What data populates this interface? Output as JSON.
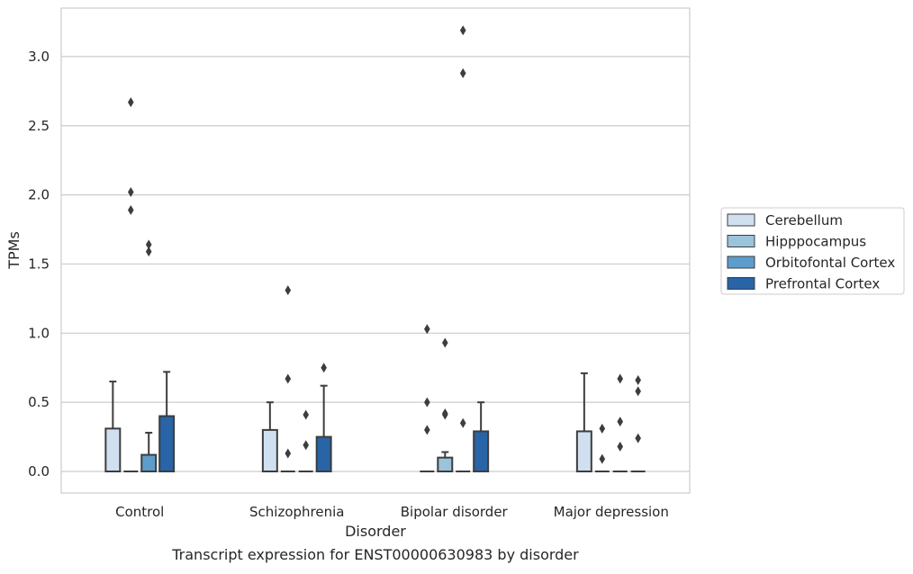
{
  "chart_data": {
    "type": "boxplot",
    "title": "",
    "caption": "Transcript expression for ENST00000630983 by disorder",
    "xlabel": "Disorder",
    "ylabel": "TPMs",
    "ylim": [
      -0.15,
      3.38
    ],
    "yticks": [
      0.0,
      0.5,
      1.0,
      1.5,
      2.0,
      2.5,
      3.0
    ],
    "ytick_labels": [
      "0.0",
      "0.5",
      "1.0",
      "1.5",
      "2.0",
      "2.5",
      "3.0"
    ],
    "grid": "horizontal",
    "legend_position": "right",
    "categories": [
      "Control",
      "Schizophrenia",
      "Bipolar disorder",
      "Major depression"
    ],
    "series": [
      {
        "name": "Cerebellum",
        "color": "#d1e0f0",
        "boxes": [
          {
            "q1": 0.0,
            "median": 0.0,
            "q3": 0.31,
            "whisker_low": 0.0,
            "whisker_high": 0.65,
            "outliers": []
          },
          {
            "q1": 0.0,
            "median": 0.0,
            "q3": 0.3,
            "whisker_low": 0.0,
            "whisker_high": 0.5,
            "outliers": []
          },
          {
            "q1": 0.0,
            "median": 0.0,
            "q3": 0.0,
            "whisker_low": 0.0,
            "whisker_high": 0.0,
            "outliers": [
              0.3,
              0.5,
              1.03
            ]
          },
          {
            "q1": 0.0,
            "median": 0.0,
            "q3": 0.29,
            "whisker_low": 0.0,
            "whisker_high": 0.71,
            "outliers": []
          }
        ]
      },
      {
        "name": "Hipppocampus",
        "color": "#9cc3dc",
        "boxes": [
          {
            "q1": 0.0,
            "median": 0.0,
            "q3": 0.0,
            "whisker_low": 0.0,
            "whisker_high": 0.0,
            "outliers": [
              1.89,
              2.02,
              2.67
            ]
          },
          {
            "q1": 0.0,
            "median": 0.0,
            "q3": 0.0,
            "whisker_low": 0.0,
            "whisker_high": 0.0,
            "outliers": [
              0.13,
              0.67,
              1.31
            ]
          },
          {
            "q1": 0.0,
            "median": 0.0,
            "q3": 0.1,
            "whisker_low": 0.0,
            "whisker_high": 0.14,
            "outliers": [
              0.41,
              0.42,
              0.93
            ]
          },
          {
            "q1": 0.0,
            "median": 0.0,
            "q3": 0.0,
            "whisker_low": 0.0,
            "whisker_high": 0.0,
            "outliers": [
              0.09,
              0.31
            ]
          }
        ]
      },
      {
        "name": "Orbitofontal Cortex",
        "color": "#5d9dcb",
        "boxes": [
          {
            "q1": 0.0,
            "median": 0.0,
            "q3": 0.12,
            "whisker_low": 0.0,
            "whisker_high": 0.28,
            "outliers": [
              1.59,
              1.64
            ]
          },
          {
            "q1": 0.0,
            "median": 0.0,
            "q3": 0.0,
            "whisker_low": 0.0,
            "whisker_high": 0.0,
            "outliers": [
              0.19,
              0.41
            ]
          },
          {
            "q1": 0.0,
            "median": 0.0,
            "q3": 0.0,
            "whisker_low": 0.0,
            "whisker_high": 0.0,
            "outliers": [
              0.35,
              2.88,
              3.19
            ]
          },
          {
            "q1": 0.0,
            "median": 0.0,
            "q3": 0.0,
            "whisker_low": 0.0,
            "whisker_high": 0.0,
            "outliers": [
              0.18,
              0.36,
              0.67
            ]
          }
        ]
      },
      {
        "name": "Prefrontal Cortex",
        "color": "#2864a6",
        "boxes": [
          {
            "q1": 0.0,
            "median": 0.0,
            "q3": 0.4,
            "whisker_low": 0.0,
            "whisker_high": 0.72,
            "outliers": []
          },
          {
            "q1": 0.0,
            "median": 0.0,
            "q3": 0.25,
            "whisker_low": 0.0,
            "whisker_high": 0.62,
            "outliers": [
              0.75
            ]
          },
          {
            "q1": 0.0,
            "median": 0.0,
            "q3": 0.29,
            "whisker_low": 0.0,
            "whisker_high": 0.5,
            "outliers": []
          },
          {
            "q1": 0.0,
            "median": 0.0,
            "q3": 0.0,
            "whisker_low": 0.0,
            "whisker_high": 0.0,
            "outliers": [
              0.24,
              0.58,
              0.66
            ]
          }
        ]
      }
    ]
  }
}
